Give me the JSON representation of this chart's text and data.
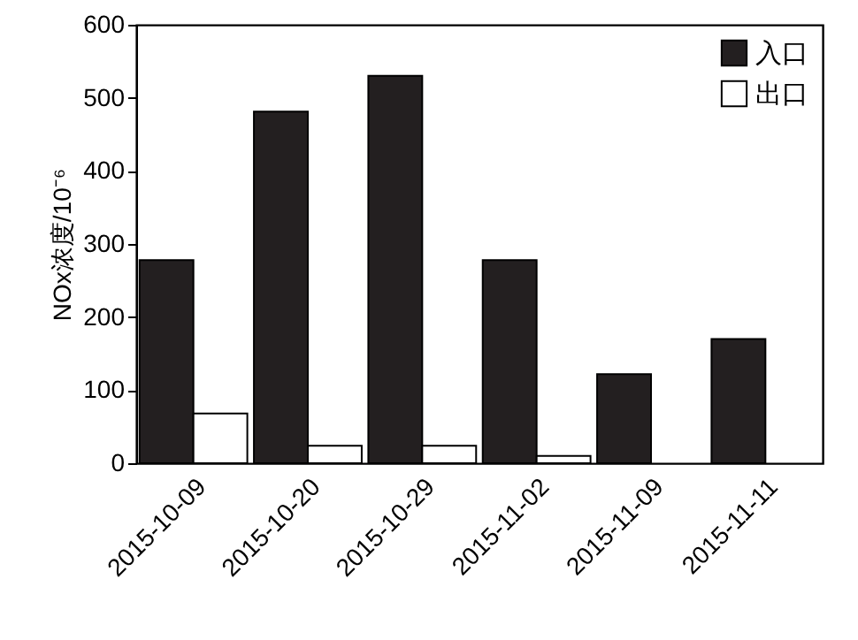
{
  "chart_data": {
    "type": "bar",
    "ylabel": "NOx浓度/10⁻⁶",
    "categories": [
      "2015-10-09",
      "2015-10-20",
      "2015-10-29",
      "2015-11-02",
      "2015-11-09",
      "2015-11-11"
    ],
    "series": [
      {
        "name": "入口",
        "color": "#231f20",
        "values": [
          278,
          481,
          530,
          278,
          122,
          170
        ]
      },
      {
        "name": "出口",
        "color": "#ffffff",
        "values": [
          68,
          24,
          24,
          10,
          null,
          null
        ]
      }
    ],
    "ylim": [
      0,
      600
    ],
    "yticks": [
      0,
      100,
      200,
      300,
      400,
      500,
      600
    ],
    "grid": false,
    "legend": "top right"
  }
}
